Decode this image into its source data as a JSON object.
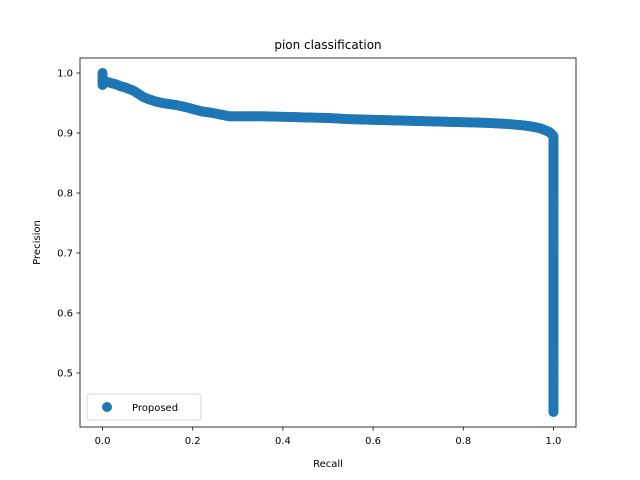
{
  "chart_data": {
    "type": "scatter",
    "title": "pion classification",
    "xlabel": "Recall",
    "ylabel": "Precision",
    "xlim": [
      -0.05,
      1.05
    ],
    "ylim": [
      0.41,
      1.025
    ],
    "xticks": [
      0.0,
      0.2,
      0.4,
      0.6,
      0.8,
      1.0
    ],
    "xtick_labels": [
      "0.0",
      "0.2",
      "0.4",
      "0.6",
      "0.8",
      "1.0"
    ],
    "yticks": [
      0.5,
      0.6,
      0.7,
      0.8,
      0.9,
      1.0
    ],
    "ytick_labels": [
      "0.5",
      "0.6",
      "0.7",
      "0.8",
      "0.9",
      "1.0"
    ],
    "grid": false,
    "legend": {
      "position": "lower left",
      "entries": [
        "Proposed"
      ]
    },
    "series": [
      {
        "name": "Proposed",
        "color": "#1f77b4",
        "marker": "circle",
        "points": [
          [
            0.0,
            1.0
          ],
          [
            0.0,
            0.98
          ],
          [
            0.002,
            0.99
          ],
          [
            0.005,
            0.985
          ],
          [
            0.01,
            0.985
          ],
          [
            0.02,
            0.983
          ],
          [
            0.03,
            0.981
          ],
          [
            0.04,
            0.978
          ],
          [
            0.05,
            0.976
          ],
          [
            0.06,
            0.973
          ],
          [
            0.07,
            0.97
          ],
          [
            0.08,
            0.965
          ],
          [
            0.09,
            0.96
          ],
          [
            0.1,
            0.957
          ],
          [
            0.12,
            0.952
          ],
          [
            0.14,
            0.949
          ],
          [
            0.16,
            0.947
          ],
          [
            0.18,
            0.944
          ],
          [
            0.2,
            0.94
          ],
          [
            0.22,
            0.936
          ],
          [
            0.24,
            0.934
          ],
          [
            0.26,
            0.931
          ],
          [
            0.28,
            0.928
          ],
          [
            0.3,
            0.928
          ],
          [
            0.35,
            0.928
          ],
          [
            0.4,
            0.927
          ],
          [
            0.45,
            0.926
          ],
          [
            0.5,
            0.925
          ],
          [
            0.55,
            0.923
          ],
          [
            0.6,
            0.922
          ],
          [
            0.65,
            0.921
          ],
          [
            0.7,
            0.92
          ],
          [
            0.75,
            0.919
          ],
          [
            0.8,
            0.918
          ],
          [
            0.85,
            0.917
          ],
          [
            0.9,
            0.915
          ],
          [
            0.93,
            0.913
          ],
          [
            0.95,
            0.911
          ],
          [
            0.97,
            0.908
          ],
          [
            0.98,
            0.905
          ],
          [
            0.99,
            0.902
          ],
          [
            0.995,
            0.899
          ],
          [
            1.0,
            0.895
          ],
          [
            1.0,
            0.85
          ],
          [
            1.0,
            0.8
          ],
          [
            1.0,
            0.75
          ],
          [
            1.0,
            0.7
          ],
          [
            1.0,
            0.65
          ],
          [
            1.0,
            0.6
          ],
          [
            1.0,
            0.55
          ],
          [
            1.0,
            0.5
          ],
          [
            1.0,
            0.45
          ],
          [
            1.0,
            0.435
          ]
        ]
      }
    ]
  }
}
